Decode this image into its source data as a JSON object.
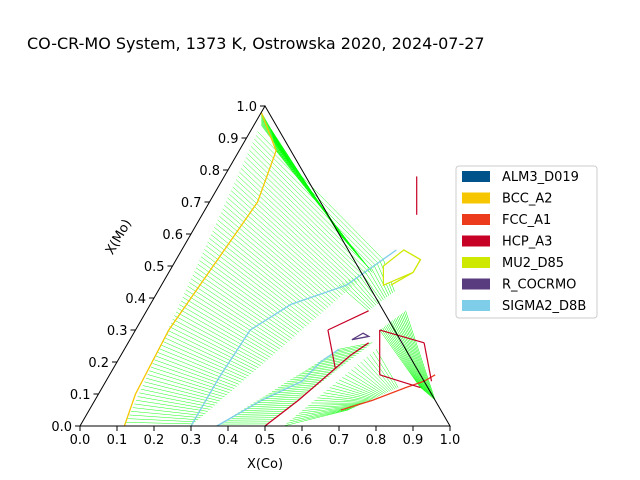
{
  "chart_data": {
    "type": "ternary-phase-diagram",
    "title": "CO-CR-MO System, 1373 K, Ostrowska 2020, 2024-07-27",
    "xlabel": "X(Co)",
    "ylabel": "X(Mo)",
    "xlim": [
      0.0,
      1.0
    ],
    "ylim": [
      0.0,
      1.0
    ],
    "x_ticks": [
      "0.0",
      "0.1",
      "0.2",
      "0.3",
      "0.4",
      "0.5",
      "0.6",
      "0.7",
      "0.8",
      "0.9",
      "1.0"
    ],
    "y_ticks": [
      "0.0",
      "0.1",
      "0.2",
      "0.3",
      "0.4",
      "0.5",
      "0.6",
      "0.7",
      "0.8",
      "0.9",
      "1.0"
    ],
    "legend_position": "right",
    "legend": [
      {
        "name": "ALM3_D019",
        "color": "#00538a"
      },
      {
        "name": "BCC_A2",
        "color": "#f6c700"
      },
      {
        "name": "FCC_A1",
        "color": "#ec3a1c"
      },
      {
        "name": "HCP_A3",
        "color": "#c70026"
      },
      {
        "name": "MU2_D85",
        "color": "#cfe800"
      },
      {
        "name": "R_COCRMO",
        "color": "#593b7f"
      },
      {
        "name": "SIGMA2_D8B",
        "color": "#7ecde9"
      }
    ],
    "tieline_color": "#00ff00",
    "phase_boundaries": [
      {
        "phase": "BCC_A2",
        "points": [
          [
            0.0,
            0.98
          ],
          [
            0.1,
            0.86
          ],
          [
            0.13,
            0.7
          ],
          [
            0.11,
            0.5
          ],
          [
            0.09,
            0.3
          ],
          [
            0.1,
            0.1
          ],
          [
            0.12,
            0.0
          ]
        ]
      },
      {
        "phase": "SIGMA2_D8B",
        "points": [
          [
            0.3,
            0.0
          ],
          [
            0.3,
            0.15
          ],
          [
            0.31,
            0.3
          ],
          [
            0.38,
            0.38
          ],
          [
            0.5,
            0.44
          ],
          [
            0.58,
            0.55
          ]
        ]
      },
      {
        "phase": "SIGMA2_D8B",
        "points": [
          [
            0.37,
            0.0
          ],
          [
            0.45,
            0.08
          ],
          [
            0.53,
            0.14
          ],
          [
            0.55,
            0.2
          ],
          [
            0.58,
            0.24
          ]
        ]
      },
      {
        "phase": "HCP_A3",
        "points": [
          [
            0.5,
            0.0
          ],
          [
            0.55,
            0.08
          ],
          [
            0.6,
            0.18
          ],
          [
            0.62,
            0.22
          ],
          [
            0.65,
            0.26
          ]
        ]
      },
      {
        "phase": "FCC_A1",
        "points": [
          [
            0.68,
            0.05
          ],
          [
            0.75,
            0.08
          ],
          [
            0.82,
            0.12
          ],
          [
            0.86,
            0.14
          ],
          [
            0.88,
            0.16
          ]
        ]
      },
      {
        "phase": "MU2_D85",
        "points": [
          [
            0.62,
            0.44
          ],
          [
            0.66,
            0.48
          ],
          [
            0.66,
            0.52
          ],
          [
            0.6,
            0.55
          ],
          [
            0.58,
            0.5
          ]
        ]
      },
      {
        "phase": "R_COCRMO",
        "points": [
          [
            0.6,
            0.27
          ],
          [
            0.64,
            0.28
          ],
          [
            0.62,
            0.29
          ]
        ]
      }
    ]
  }
}
